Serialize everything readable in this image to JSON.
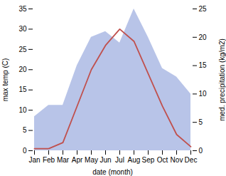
{
  "chart_data": {
    "type": "line",
    "categories": [
      "Jan",
      "Feb",
      "Mar",
      "Apr",
      "May",
      "Jun",
      "Jul",
      "Aug",
      "Sep",
      "Oct",
      "Nov",
      "Dec"
    ],
    "xlabel": "date (month)",
    "ylabel": "max temp (C)",
    "y2label": "med. precipitation (kg/m2)",
    "ylim": [
      0,
      35
    ],
    "yticks": [
      0,
      5,
      10,
      15,
      20,
      25,
      30,
      35
    ],
    "y2lim": [
      0,
      25
    ],
    "y2ticks": [
      0,
      5,
      10,
      15,
      20,
      25
    ],
    "grid": false,
    "series": [
      {
        "type": "area",
        "axis": "y2",
        "color": "#b8c4e8",
        "values": [
          6.0,
          8.0,
          8.0,
          15.0,
          20.0,
          21.0,
          19.0,
          25.0,
          20.0,
          14.5,
          13.0,
          10.0
        ]
      },
      {
        "type": "line",
        "color": "#c0504d",
        "values": [
          0.5,
          0.5,
          2.0,
          11.0,
          20.0,
          26.0,
          30.0,
          27.0,
          19.0,
          11.0,
          4.0,
          1.0
        ]
      }
    ]
  }
}
